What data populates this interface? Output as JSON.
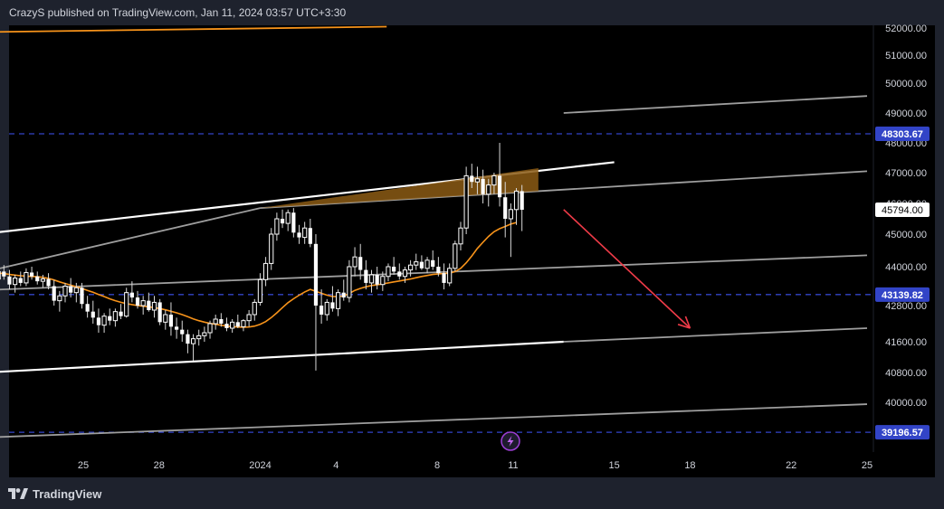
{
  "header": {
    "attribution": "CrazyS published on TradingView.com, Jan 11, 2024 03:57 UTC+3:30"
  },
  "footer": {
    "brand": "TradingView",
    "logo_icon": "tradingview-logo-icon"
  },
  "chart_data": {
    "type": "candlestick",
    "price_axis": {
      "ylim": [
        39100,
        52000
      ],
      "tick_labels": [
        {
          "label": "52000.00",
          "value": 52000
        },
        {
          "label": "51000.00",
          "value": 51000
        },
        {
          "label": "50000.00",
          "value": 50000
        },
        {
          "label": "49000.00",
          "value": 49000
        },
        {
          "label": "48000.00",
          "value": 48000
        },
        {
          "label": "47000.00",
          "value": 47000
        },
        {
          "label": "46000.00",
          "value": 46000
        },
        {
          "label": "45000.00",
          "value": 45000
        },
        {
          "label": "44000.00",
          "value": 44000
        },
        {
          "label": "42800.00",
          "value": 42800
        },
        {
          "label": "41600.00",
          "value": 41600
        },
        {
          "label": "40800.00",
          "value": 40800
        },
        {
          "label": "40000.00",
          "value": 40000
        }
      ]
    },
    "time_axis": {
      "tick_labels": [
        {
          "label": "25",
          "day": -7
        },
        {
          "label": "28",
          "day": -4
        },
        {
          "label": "2024",
          "day": 0
        },
        {
          "label": "4",
          "day": 3
        },
        {
          "label": "8",
          "day": 7
        },
        {
          "label": "11",
          "day": 10
        },
        {
          "label": "15",
          "day": 14
        },
        {
          "label": "18",
          "day": 17
        },
        {
          "label": "22",
          "day": 21
        },
        {
          "label": "25",
          "day": 24
        }
      ]
    },
    "last_price": {
      "label": "45794.00",
      "value": 45794
    },
    "horizontal_levels": [
      {
        "label": "48303.67",
        "value": 48303.67
      },
      {
        "label": "43139.82",
        "value": 43139.82
      },
      {
        "label": "39196.57",
        "value": 39196.57
      }
    ],
    "candles": [
      [
        43850,
        44150,
        43500,
        43780
      ],
      [
        43780,
        44000,
        43500,
        43620
      ],
      [
        43620,
        43900,
        43400,
        43850
      ],
      [
        43850,
        44050,
        43600,
        43700
      ],
      [
        43700,
        43900,
        43300,
        43450
      ],
      [
        43450,
        43750,
        43200,
        43650
      ],
      [
        43650,
        43850,
        43400,
        43500
      ],
      [
        43500,
        43950,
        43400,
        43820
      ],
      [
        43820,
        44000,
        43600,
        43700
      ],
      [
        43700,
        43850,
        43450,
        43550
      ],
      [
        43550,
        43750,
        43350,
        43620
      ],
      [
        43620,
        43800,
        43300,
        43400
      ],
      [
        43400,
        43600,
        42800,
        42950
      ],
      [
        42950,
        43250,
        42600,
        43100
      ],
      [
        43100,
        43500,
        42900,
        43400
      ],
      [
        43400,
        43650,
        43050,
        43200
      ],
      [
        43200,
        43500,
        42900,
        43350
      ],
      [
        43350,
        43500,
        42700,
        42850
      ],
      [
        42850,
        43100,
        42400,
        42600
      ],
      [
        42600,
        42950,
        42200,
        42400
      ],
      [
        42400,
        42700,
        41900,
        42150
      ],
      [
        42150,
        42550,
        41900,
        42450
      ],
      [
        42450,
        42700,
        42150,
        42300
      ],
      [
        42300,
        42700,
        42100,
        42600
      ],
      [
        42600,
        42850,
        42350,
        42450
      ],
      [
        42450,
        43350,
        42400,
        43200
      ],
      [
        43200,
        43550,
        42900,
        43050
      ],
      [
        43050,
        43250,
        42700,
        42800
      ],
      [
        42800,
        43100,
        42500,
        42950
      ],
      [
        42950,
        43200,
        42600,
        42650
      ],
      [
        42650,
        43100,
        42400,
        42900
      ],
      [
        42900,
        43000,
        42150,
        42250
      ],
      [
        42250,
        42650,
        42000,
        42500
      ],
      [
        42500,
        42900,
        41800,
        42100
      ],
      [
        42100,
        42400,
        41700,
        42000
      ],
      [
        42000,
        42300,
        41600,
        41850
      ],
      [
        41850,
        42000,
        41300,
        41550
      ],
      [
        41550,
        41850,
        41100,
        41700
      ],
      [
        41700,
        42000,
        41500,
        41800
      ],
      [
        41800,
        42100,
        41600,
        41900
      ],
      [
        41900,
        42300,
        41700,
        42200
      ],
      [
        42200,
        42500,
        42000,
        42350
      ],
      [
        42350,
        42550,
        42100,
        42200
      ],
      [
        42200,
        42400,
        41950,
        42050
      ],
      [
        42050,
        42350,
        41900,
        42250
      ],
      [
        42250,
        42500,
        42050,
        42100
      ],
      [
        42100,
        42350,
        41950,
        42300
      ],
      [
        42300,
        42650,
        42100,
        42500
      ],
      [
        42500,
        43000,
        42300,
        42900
      ],
      [
        42900,
        43800,
        42800,
        43600
      ],
      [
        43600,
        44300,
        43400,
        44100
      ],
      [
        44100,
        45200,
        43900,
        45000
      ],
      [
        45000,
        45700,
        44800,
        45500
      ],
      [
        45500,
        45800,
        45200,
        45350
      ],
      [
        45350,
        45800,
        45100,
        45700
      ],
      [
        45700,
        45850,
        44900,
        45050
      ],
      [
        45050,
        45300,
        44700,
        44900
      ],
      [
        44900,
        45400,
        44700,
        45200
      ],
      [
        45200,
        45500,
        44600,
        44700
      ],
      [
        44700,
        45000,
        40850,
        42800
      ],
      [
        42800,
        43300,
        42200,
        42500
      ],
      [
        42500,
        43000,
        42300,
        42900
      ],
      [
        42900,
        43400,
        42600,
        42700
      ],
      [
        42700,
        43300,
        42450,
        43200
      ],
      [
        43200,
        43600,
        42950,
        43050
      ],
      [
        43050,
        44200,
        42900,
        44000
      ],
      [
        44000,
        44600,
        43700,
        44300
      ],
      [
        44300,
        44700,
        43600,
        43900
      ],
      [
        43900,
        44200,
        43300,
        43500
      ],
      [
        43500,
        43900,
        43200,
        43750
      ],
      [
        43750,
        44000,
        43300,
        43450
      ],
      [
        43450,
        43850,
        43250,
        43700
      ],
      [
        43700,
        44100,
        43550,
        44000
      ],
      [
        44000,
        44300,
        43750,
        43850
      ],
      [
        43850,
        44100,
        43600,
        43700
      ],
      [
        43700,
        44000,
        43500,
        43900
      ],
      [
        43900,
        44200,
        43700,
        44050
      ],
      [
        44050,
        44400,
        43900,
        44150
      ],
      [
        44150,
        44350,
        43900,
        43950
      ],
      [
        43950,
        44300,
        43800,
        44200
      ],
      [
        44200,
        44500,
        43900,
        44000
      ],
      [
        44000,
        44300,
        43700,
        43800
      ],
      [
        43800,
        44100,
        43300,
        43500
      ],
      [
        43500,
        44100,
        43400,
        43950
      ],
      [
        43950,
        44800,
        43850,
        44700
      ],
      [
        44700,
        45400,
        44500,
        45200
      ],
      [
        45200,
        47200,
        45000,
        46900
      ],
      [
        46900,
        47300,
        46500,
        46700
      ],
      [
        46700,
        47200,
        46300,
        46800
      ],
      [
        46800,
        47100,
        46000,
        46300
      ],
      [
        46300,
        46800,
        45900,
        46600
      ],
      [
        46600,
        47000,
        46300,
        46900
      ],
      [
        46900,
        48000,
        45900,
        46200
      ],
      [
        46200,
        46700,
        44900,
        45500
      ],
      [
        45500,
        46000,
        44300,
        45800
      ],
      [
        45800,
        46500,
        45300,
        46400
      ],
      [
        46400,
        46600,
        45100,
        45794
      ]
    ],
    "moving_average": [
      43820,
      43810,
      43800,
      43790,
      43760,
      43740,
      43720,
      43710,
      43700,
      43690,
      43670,
      43640,
      43590,
      43530,
      43480,
      43430,
      43380,
      43330,
      43270,
      43210,
      43140,
      43080,
      43010,
      42950,
      42900,
      42860,
      42830,
      42800,
      42780,
      42760,
      42730,
      42700,
      42660,
      42610,
      42560,
      42500,
      42430,
      42360,
      42300,
      42250,
      42210,
      42180,
      42150,
      42120,
      42100,
      42090,
      42080,
      42090,
      42120,
      42180,
      42270,
      42400,
      42560,
      42730,
      42890,
      43010,
      43120,
      43220,
      43300,
      43240,
      43180,
      43120,
      43080,
      43080,
      43100,
      43170,
      43270,
      43330,
      43380,
      43420,
      43440,
      43470,
      43500,
      43530,
      43560,
      43590,
      43620,
      43660,
      43700,
      43730,
      43760,
      43780,
      43790,
      43800,
      43850,
      43950,
      44120,
      44330,
      44560,
      44750,
      44930,
      45080,
      45180,
      45250,
      45330,
      45380
    ],
    "trendlines": [
      {
        "color": "#ffffff",
        "points": [
          [
            "2023-12-17",
            44650
          ],
          [
            "2024-01-15",
            47350
          ]
        ]
      },
      {
        "color": "#9e9e9e",
        "points": [
          [
            "2023-12-17",
            43100
          ],
          [
            "2024-01-01",
            45850
          ]
        ]
      },
      {
        "color": "#9e9e9e",
        "points": [
          [
            "2024-01-01",
            45850
          ],
          [
            "2024-01-25",
            47050
          ]
        ]
      },
      {
        "color": "#9e9e9e",
        "points": [
          [
            "2023-12-17",
            43150
          ],
          [
            "2024-01-25",
            44350
          ]
        ]
      },
      {
        "color": "#ffffff",
        "points": [
          [
            "2023-12-17",
            40650
          ],
          [
            "2024-01-13",
            41600
          ]
        ]
      },
      {
        "color": "#9e9e9e",
        "points": [
          [
            "2024-01-13",
            41600
          ],
          [
            "2024-01-25",
            42050
          ]
        ]
      },
      {
        "color": "#9e9e9e",
        "points": [
          [
            "2023-12-17",
            38950
          ],
          [
            "2024-01-25",
            39950
          ]
        ]
      },
      {
        "color": "#9e9e9e",
        "points": [
          [
            "2024-01-13",
            49000
          ],
          [
            "2024-01-25",
            49570
          ]
        ]
      },
      {
        "color": "#f7931a",
        "points": [
          [
            "2023-12-17",
            51800
          ],
          [
            "2024-01-06",
            52050
          ]
        ]
      }
    ],
    "highlight_zone": {
      "color": "#8b5a14",
      "points": [
        [
          "2024-01-01",
          45850
        ],
        [
          "2024-01-12",
          47150
        ],
        [
          "2024-01-12",
          46400
        ],
        [
          "2024-01-01",
          45850
        ]
      ]
    },
    "arrow": {
      "color": "#ef3b48",
      "from": [
        "2024-01-13",
        45800
      ],
      "to": [
        "2024-01-18",
        42050
      ]
    },
    "colors": {
      "background": "#000000",
      "panel": "#1e222d",
      "up": "#ffffff",
      "down": "#ffffff",
      "ma": "#f7931a",
      "level": "#3244c7",
      "axis_text": "#d1d4dc"
    }
  }
}
